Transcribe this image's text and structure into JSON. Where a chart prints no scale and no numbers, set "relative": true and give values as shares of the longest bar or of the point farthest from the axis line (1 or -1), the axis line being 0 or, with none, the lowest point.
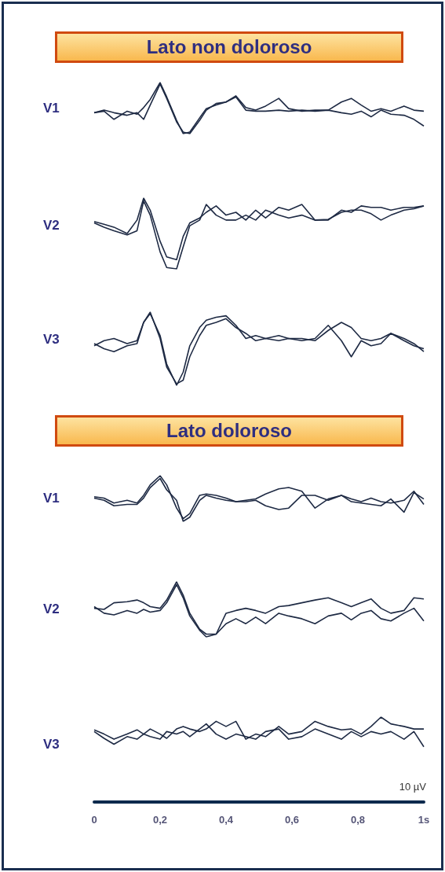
{
  "chart_data": [
    {
      "type": "line",
      "title": "Lato non doloroso",
      "ylabel": "V1",
      "relative": true,
      "marker": "none",
      "tick_labels": false,
      "xlim": [
        0,
        1
      ],
      "x": [
        0,
        0.03,
        0.06,
        0.1,
        0.13,
        0.15,
        0.17,
        0.2,
        0.22,
        0.25,
        0.27,
        0.29,
        0.32,
        0.34,
        0.37,
        0.4,
        0.43,
        0.46,
        0.49,
        0.52,
        0.56,
        0.59,
        0.63,
        0.67,
        0.71,
        0.75,
        0.78,
        0.81,
        0.84,
        0.87,
        0.9,
        0.94,
        0.97,
        1
      ],
      "series": [
        {
          "color": "#1e2a44",
          "values": [
            0.41,
            0.44,
            0.28,
            0.44,
            0.38,
            0.51,
            0.67,
            1,
            0.72,
            0.26,
            0,
            0.03,
            0.31,
            0.49,
            0.56,
            0.62,
            0.74,
            0.51,
            0.46,
            0.54,
            0.69,
            0.49,
            0.44,
            0.46,
            0.46,
            0.62,
            0.69,
            0.56,
            0.44,
            0.49,
            0.44,
            0.54,
            0.46,
            0.44
          ]
        },
        {
          "color": "#1e2a44",
          "values": [
            0.41,
            0.46,
            0.41,
            0.36,
            0.41,
            0.28,
            0.56,
            0.97,
            0.69,
            0.23,
            0.03,
            0,
            0.26,
            0.46,
            0.59,
            0.62,
            0.72,
            0.46,
            0.44,
            0.44,
            0.46,
            0.44,
            0.46,
            0.44,
            0.46,
            0.41,
            0.38,
            0.44,
            0.33,
            0.46,
            0.38,
            0.36,
            0.28,
            0.15
          ]
        }
      ]
    },
    {
      "type": "line",
      "ylabel": "V2",
      "relative": true,
      "marker": "none",
      "tick_labels": false,
      "xlim": [
        0,
        1
      ],
      "x": [
        0,
        0.03,
        0.06,
        0.1,
        0.13,
        0.15,
        0.17,
        0.2,
        0.22,
        0.25,
        0.27,
        0.29,
        0.32,
        0.34,
        0.37,
        0.4,
        0.43,
        0.46,
        0.49,
        0.52,
        0.56,
        0.59,
        0.63,
        0.67,
        0.71,
        0.75,
        0.78,
        0.81,
        0.84,
        0.87,
        0.9,
        0.94,
        0.97,
        1
      ],
      "series": [
        {
          "color": "#1e2a44",
          "values": [
            0.67,
            0.63,
            0.59,
            0.5,
            0.69,
            1,
            0.83,
            0.39,
            0.17,
            0.13,
            0.46,
            0.65,
            0.72,
            0.8,
            0.89,
            0.76,
            0.8,
            0.69,
            0.83,
            0.72,
            0.87,
            0.83,
            0.91,
            0.69,
            0.69,
            0.83,
            0.8,
            0.89,
            0.87,
            0.87,
            0.83,
            0.87,
            0.87,
            0.89
          ]
        },
        {
          "color": "#1e2a44",
          "values": [
            0.65,
            0.59,
            0.54,
            0.48,
            0.54,
            0.96,
            0.76,
            0.24,
            0.02,
            0,
            0.31,
            0.61,
            0.69,
            0.91,
            0.76,
            0.69,
            0.69,
            0.76,
            0.69,
            0.83,
            0.76,
            0.72,
            0.76,
            0.69,
            0.7,
            0.8,
            0.83,
            0.83,
            0.78,
            0.69,
            0.76,
            0.83,
            0.85,
            0.89
          ]
        }
      ]
    },
    {
      "type": "line",
      "ylabel": "V3",
      "relative": true,
      "marker": "none",
      "tick_labels": false,
      "xlim": [
        0,
        1
      ],
      "x": [
        0,
        0.03,
        0.06,
        0.1,
        0.13,
        0.15,
        0.17,
        0.2,
        0.22,
        0.25,
        0.27,
        0.29,
        0.32,
        0.34,
        0.37,
        0.4,
        0.43,
        0.46,
        0.49,
        0.52,
        0.56,
        0.59,
        0.63,
        0.67,
        0.71,
        0.75,
        0.78,
        0.81,
        0.84,
        0.87,
        0.9,
        0.94,
        0.97,
        1
      ],
      "series": [
        {
          "color": "#1e2a44",
          "values": [
            0.54,
            0.61,
            0.64,
            0.57,
            0.61,
            0.86,
            0.98,
            0.68,
            0.29,
            0,
            0.18,
            0.54,
            0.79,
            0.89,
            0.93,
            0.95,
            0.82,
            0.64,
            0.68,
            0.64,
            0.68,
            0.64,
            0.64,
            0.61,
            0.75,
            0.86,
            0.79,
            0.64,
            0.61,
            0.64,
            0.71,
            0.64,
            0.57,
            0.46
          ]
        },
        {
          "color": "#1e2a44",
          "values": [
            0.57,
            0.5,
            0.46,
            0.54,
            0.57,
            0.86,
            1,
            0.64,
            0.25,
            0.02,
            0.07,
            0.39,
            0.68,
            0.82,
            0.86,
            0.91,
            0.79,
            0.71,
            0.61,
            0.64,
            0.61,
            0.64,
            0.61,
            0.64,
            0.82,
            0.61,
            0.39,
            0.61,
            0.54,
            0.57,
            0.71,
            0.61,
            0.54,
            0.5
          ]
        }
      ]
    },
    {
      "type": "line",
      "title": "Lato doloroso",
      "ylabel": "V1",
      "relative": true,
      "marker": "none",
      "tick_labels": false,
      "xlim": [
        0,
        1
      ],
      "x": [
        0,
        0.03,
        0.06,
        0.1,
        0.13,
        0.15,
        0.17,
        0.2,
        0.22,
        0.25,
        0.27,
        0.29,
        0.32,
        0.34,
        0.37,
        0.4,
        0.43,
        0.46,
        0.49,
        0.52,
        0.56,
        0.59,
        0.63,
        0.67,
        0.71,
        0.75,
        0.78,
        0.81,
        0.84,
        0.87,
        0.9,
        0.94,
        0.97,
        1
      ],
      "series": [
        {
          "color": "#1e2a44",
          "values": [
            0.54,
            0.51,
            0.4,
            0.46,
            0.4,
            0.57,
            0.8,
            1,
            0.8,
            0.29,
            0.06,
            0.17,
            0.57,
            0.6,
            0.57,
            0.51,
            0.43,
            0.46,
            0.49,
            0.6,
            0.71,
            0.74,
            0.66,
            0.29,
            0.49,
            0.57,
            0.49,
            0.43,
            0.51,
            0.43,
            0.4,
            0.46,
            0.66,
            0.37
          ]
        },
        {
          "color": "#1e2a44",
          "values": [
            0.51,
            0.46,
            0.34,
            0.37,
            0.37,
            0.51,
            0.74,
            0.94,
            0.69,
            0.46,
            0,
            0.09,
            0.46,
            0.57,
            0.51,
            0.46,
            0.43,
            0.43,
            0.46,
            0.34,
            0.26,
            0.29,
            0.57,
            0.57,
            0.46,
            0.57,
            0.43,
            0.4,
            0.37,
            0.34,
            0.49,
            0.2,
            0.63,
            0.49
          ]
        }
      ]
    },
    {
      "type": "line",
      "ylabel": "V2",
      "relative": true,
      "marker": "none",
      "tick_labels": false,
      "xlim": [
        0,
        1
      ],
      "x": [
        0,
        0.03,
        0.06,
        0.1,
        0.13,
        0.15,
        0.17,
        0.2,
        0.22,
        0.25,
        0.27,
        0.29,
        0.32,
        0.34,
        0.37,
        0.4,
        0.43,
        0.46,
        0.49,
        0.52,
        0.56,
        0.59,
        0.63,
        0.67,
        0.71,
        0.75,
        0.78,
        0.81,
        0.84,
        0.87,
        0.9,
        0.94,
        0.97,
        1
      ],
      "series": [
        {
          "color": "#1e2a44",
          "values": [
            0.52,
            0.5,
            0.62,
            0.64,
            0.67,
            0.62,
            0.55,
            0.52,
            0.67,
            1,
            0.76,
            0.43,
            0.14,
            0.05,
            0.05,
            0.43,
            0.48,
            0.52,
            0.48,
            0.43,
            0.55,
            0.57,
            0.62,
            0.67,
            0.71,
            0.62,
            0.55,
            0.62,
            0.69,
            0.52,
            0.43,
            0.48,
            0.71,
            0.69
          ]
        },
        {
          "color": "#1e2a44",
          "values": [
            0.55,
            0.43,
            0.4,
            0.48,
            0.43,
            0.5,
            0.45,
            0.48,
            0.62,
            0.95,
            0.71,
            0.38,
            0.12,
            0,
            0.05,
            0.24,
            0.33,
            0.24,
            0.36,
            0.24,
            0.43,
            0.38,
            0.33,
            0.24,
            0.38,
            0.43,
            0.31,
            0.43,
            0.48,
            0.33,
            0.29,
            0.43,
            0.52,
            0.29
          ]
        }
      ]
    },
    {
      "type": "line",
      "ylabel": "V3",
      "relative": true,
      "marker": "none",
      "tick_labels": "x",
      "xlim": [
        0,
        1
      ],
      "xticks": [
        0,
        {
          "value": 0.2,
          "label": "0,2"
        },
        {
          "value": 0.4,
          "label": "0,4"
        },
        {
          "value": 0.6,
          "label": "0,6"
        },
        {
          "value": 0.8,
          "label": "0,8"
        },
        {
          "value": 1,
          "label": "1s"
        }
      ],
      "annotations": [
        "10 µV"
      ],
      "x": [
        0,
        0.03,
        0.06,
        0.1,
        0.13,
        0.15,
        0.17,
        0.2,
        0.22,
        0.25,
        0.27,
        0.29,
        0.32,
        0.34,
        0.37,
        0.4,
        0.43,
        0.46,
        0.49,
        0.52,
        0.56,
        0.59,
        0.63,
        0.67,
        0.71,
        0.75,
        0.78,
        0.81,
        0.84,
        0.87,
        0.9,
        0.94,
        0.97,
        1
      ],
      "series": [
        {
          "color": "#1e2a44",
          "values": [
            0.85,
            0.8,
            0.74,
            0.8,
            0.85,
            0.8,
            0.86,
            0.8,
            0.75,
            0.86,
            0.89,
            0.86,
            0.83,
            0.86,
            0.95,
            0.89,
            0.95,
            0.74,
            0.8,
            0.77,
            0.89,
            0.8,
            0.83,
            0.95,
            0.89,
            0.85,
            0.86,
            0.8,
            0.89,
            1,
            0.92,
            0.89,
            0.86,
            0.86
          ]
        },
        {
          "color": "#1e2a44",
          "values": [
            0.83,
            0.75,
            0.68,
            0.77,
            0.74,
            0.8,
            0.77,
            0.74,
            0.83,
            0.8,
            0.83,
            0.77,
            0.86,
            0.92,
            0.8,
            0.74,
            0.8,
            0.77,
            0.74,
            0.83,
            0.86,
            0.74,
            0.77,
            0.86,
            0.8,
            0.74,
            0.83,
            0.77,
            0.83,
            0.8,
            0.83,
            0.74,
            0.83,
            0.65
          ]
        }
      ]
    }
  ]
}
